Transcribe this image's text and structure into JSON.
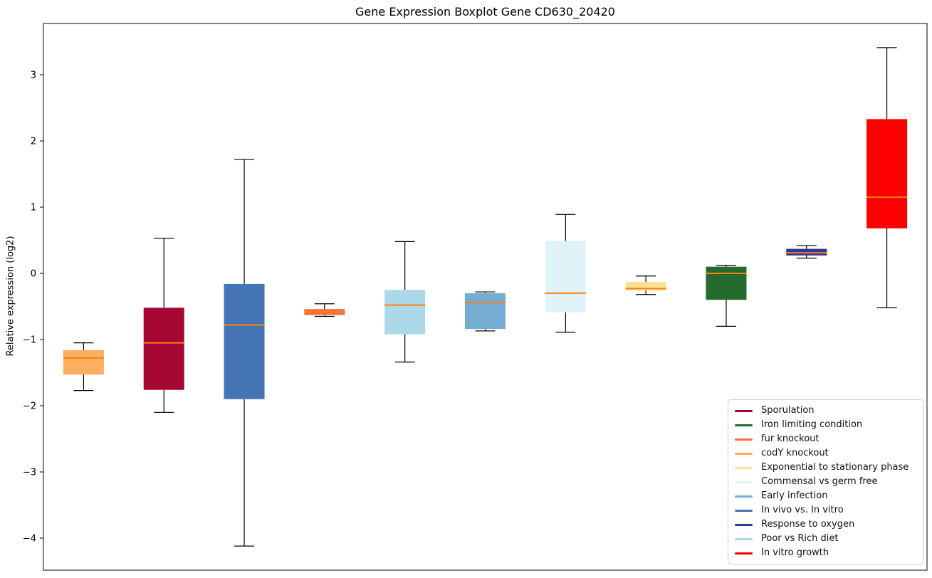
{
  "title": "Gene Expression Boxplot Gene CD630_20420",
  "ylabel": "Relative expression (log2)",
  "chart_data": {
    "type": "boxplot",
    "title": "Gene Expression Boxplot Gene CD630_20420",
    "xlabel": "",
    "ylabel": "Relative expression (log2)",
    "yticks": [
      3,
      2,
      1,
      0,
      -1,
      -2,
      -3,
      -4
    ],
    "ylim": [
      -4.55,
      3.78
    ],
    "grid": false,
    "x_tick_labels": [],
    "legend_position": "lower right",
    "median_color": "#ff7f0e",
    "whisker_color": "#000000",
    "series": [
      {
        "name": "codY knockout",
        "color": "#fdae61",
        "whisker_low": -1.77,
        "q1": -1.53,
        "median": -1.28,
        "q3": -1.16,
        "whisker_high": -1.05
      },
      {
        "name": "Sporulation",
        "color": "#a60633",
        "whisker_low": -2.1,
        "q1": -1.76,
        "median": -1.05,
        "q3": -0.52,
        "whisker_high": 0.53
      },
      {
        "name": "In vivo vs. In vitro",
        "color": "#4575b4",
        "whisker_low": -4.12,
        "q1": -1.9,
        "median": -0.78,
        "q3": -0.16,
        "whisker_high": 1.72
      },
      {
        "name": "fur knockout",
        "color": "#f46d43",
        "whisker_low": -0.65,
        "q1": -0.63,
        "median": -0.58,
        "q3": -0.54,
        "whisker_high": -0.46
      },
      {
        "name": "Poor vs Rich diet",
        "color": "#abd9e9",
        "whisker_low": -1.34,
        "q1": -0.92,
        "median": -0.48,
        "q3": -0.25,
        "whisker_high": 0.48
      },
      {
        "name": "Early infection",
        "color": "#74add1",
        "whisker_low": -0.87,
        "q1": -0.84,
        "median": -0.44,
        "q3": -0.3,
        "whisker_high": -0.28
      },
      {
        "name": "Commensal vs germ free",
        "color": "#e0f3f8",
        "whisker_low": -0.89,
        "q1": -0.59,
        "median": -0.3,
        "q3": 0.49,
        "whisker_high": 0.89
      },
      {
        "name": "Exponential to stationary phase",
        "color": "#fee090",
        "whisker_low": -0.32,
        "q1": -0.26,
        "median": -0.23,
        "q3": -0.13,
        "whisker_high": -0.04
      },
      {
        "name": "Iron limiting condition",
        "color": "#266b2e",
        "whisker_low": -0.8,
        "q1": -0.4,
        "median": 0.0,
        "q3": 0.1,
        "whisker_high": 0.12
      },
      {
        "name": "Response to oxygen",
        "color": "#313695",
        "whisker_low": 0.23,
        "q1": 0.27,
        "median": 0.31,
        "q3": 0.37,
        "whisker_high": 0.42
      },
      {
        "name": "In vitro growth",
        "color": "#ff0000",
        "whisker_low": -0.52,
        "q1": 0.68,
        "median": 1.15,
        "q3": 2.33,
        "whisker_high": 3.41
      }
    ]
  },
  "legend": {
    "entries": [
      {
        "label": "Sporulation",
        "color": "#a60633"
      },
      {
        "label": "Iron limiting condition",
        "color": "#266b2e"
      },
      {
        "label": "fur knockout",
        "color": "#f46d43"
      },
      {
        "label": "codY knockout",
        "color": "#fdae61"
      },
      {
        "label": "Exponential to stationary phase",
        "color": "#fee090"
      },
      {
        "label": "Commensal vs germ free",
        "color": "#e0f3f8"
      },
      {
        "label": "Early infection",
        "color": "#74add1"
      },
      {
        "label": "In vivo vs. In vitro",
        "color": "#4575b4"
      },
      {
        "label": "Response to oxygen",
        "color": "#313695"
      },
      {
        "label": "Poor vs Rich diet",
        "color": "#abd9e9"
      },
      {
        "label": "In vitro growth",
        "color": "#ff0000"
      }
    ]
  }
}
